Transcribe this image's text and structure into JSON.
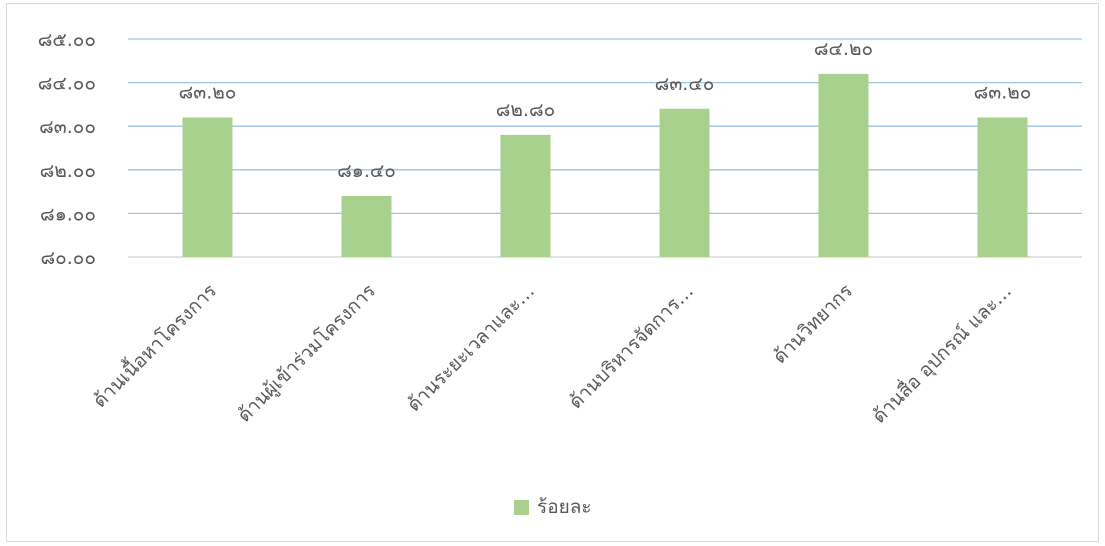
{
  "chart_data": {
    "type": "bar",
    "categories": [
      "ด้านเนื้อหาโครงการ",
      "ด้านผู้เข้าร่วมโครงการ",
      "ด้านระยะเวลาและ…",
      "ด้านบริหารจัดการ…",
      "ด้านวิทยากร",
      "ด้านสื่อ อุปกรณ์ และ…"
    ],
    "series": [
      {
        "name": "ร้อยละ",
        "values": [
          83.2,
          81.4,
          82.8,
          83.4,
          84.2,
          83.2
        ],
        "labels": [
          "๘๓.๒๐",
          "๘๑.๔๐",
          "๘๒.๘๐",
          "๘๓.๔๐",
          "๘๔.๒๐",
          "๘๓.๒๐"
        ],
        "color": "#a9d18e"
      }
    ],
    "ylim": [
      80,
      85
    ],
    "yticks": [
      80,
      81,
      82,
      83,
      84,
      85
    ],
    "ytick_labels": [
      "๘๐.๐๐",
      "๘๑.๐๐",
      "๘๒.๐๐",
      "๘๓.๐๐",
      "๘๔.๐๐",
      "๘๕.๐๐"
    ],
    "gridlines": true,
    "gridline_color": "#9dc3e6",
    "title": "",
    "xlabel": "",
    "ylabel": "",
    "legend_position": "bottom"
  }
}
